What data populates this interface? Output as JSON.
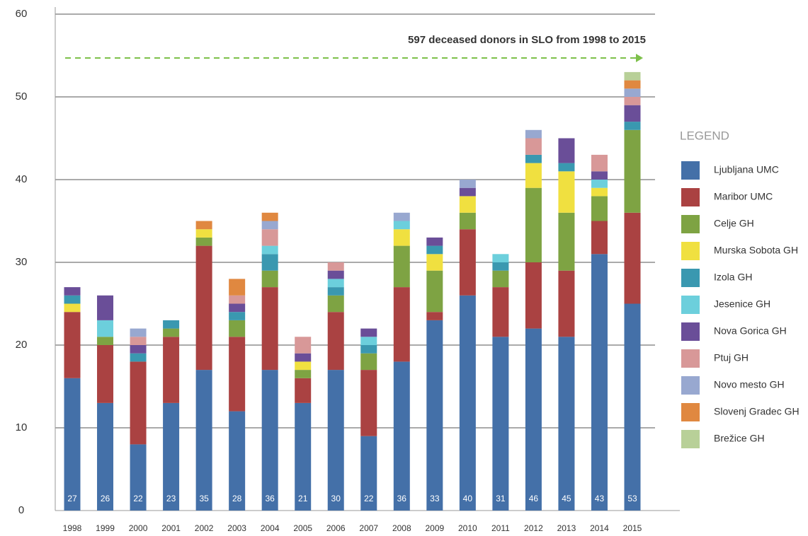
{
  "chart_data": {
    "type": "stacked_bar",
    "annotation": "597 deceased donors in SLO from 1998 to 2015",
    "legend_title": "LEGEND",
    "categories": [
      "1998",
      "1999",
      "2000",
      "2001",
      "2002",
      "2003",
      "2004",
      "2005",
      "2006",
      "2007",
      "2008",
      "2009",
      "2010",
      "2011",
      "2012",
      "2013",
      "2014",
      "2015"
    ],
    "totals": [
      27,
      26,
      22,
      23,
      35,
      28,
      36,
      21,
      30,
      22,
      36,
      33,
      40,
      31,
      46,
      45,
      43,
      53
    ],
    "series": [
      {
        "name": "Ljubljana UMC",
        "color": "#4470a8",
        "values": [
          16,
          13,
          8,
          13,
          17,
          12,
          17,
          13,
          17,
          9,
          18,
          23,
          26,
          21,
          22,
          21,
          31,
          25
        ]
      },
      {
        "name": "Maribor UMC",
        "color": "#aa4242",
        "values": [
          8,
          7,
          10,
          8,
          15,
          9,
          10,
          3,
          7,
          8,
          9,
          1,
          8,
          6,
          8,
          8,
          4,
          11
        ]
      },
      {
        "name": "Celje GH",
        "color": "#7ea343",
        "values": [
          0,
          1,
          0,
          1,
          1,
          2,
          2,
          1,
          2,
          2,
          5,
          5,
          2,
          2,
          9,
          7,
          3,
          10
        ]
      },
      {
        "name": "Murska Sobota GH",
        "color": "#f0e040",
        "values": [
          1,
          0,
          0,
          0,
          1,
          0,
          0,
          1,
          0,
          0,
          2,
          2,
          2,
          0,
          3,
          5,
          1,
          0
        ]
      },
      {
        "name": "Izola GH",
        "color": "#3a98b0",
        "values": [
          1,
          0,
          1,
          1,
          0,
          1,
          2,
          0,
          1,
          1,
          0,
          1,
          0,
          1,
          1,
          1,
          0,
          1
        ]
      },
      {
        "name": "Jesenice GH",
        "color": "#6ccfdc",
        "values": [
          0,
          2,
          0,
          0,
          0,
          0,
          1,
          0,
          1,
          1,
          1,
          0,
          0,
          1,
          0,
          0,
          1,
          0
        ]
      },
      {
        "name": "Nova Gorica GH",
        "color": "#6a4e98",
        "values": [
          1,
          3,
          1,
          0,
          0,
          1,
          0,
          1,
          1,
          1,
          0,
          1,
          1,
          0,
          0,
          3,
          1,
          2
        ]
      },
      {
        "name": "Ptuj GH",
        "color": "#d89898",
        "values": [
          0,
          0,
          1,
          0,
          0,
          1,
          2,
          2,
          1,
          0,
          0,
          0,
          0,
          0,
          2,
          0,
          2,
          1
        ]
      },
      {
        "name": "Novo mesto GH",
        "color": "#98a8d0",
        "values": [
          0,
          0,
          1,
          0,
          0,
          0,
          1,
          0,
          0,
          0,
          1,
          0,
          1,
          0,
          1,
          0,
          0,
          1
        ]
      },
      {
        "name": "Slovenj Gradec GH",
        "color": "#e08840",
        "values": [
          0,
          0,
          0,
          0,
          1,
          2,
          1,
          0,
          0,
          0,
          0,
          0,
          0,
          0,
          0,
          0,
          0,
          1
        ]
      },
      {
        "name": "Brežice GH",
        "color": "#b8d098",
        "values": [
          0,
          0,
          0,
          0,
          0,
          0,
          0,
          0,
          0,
          0,
          0,
          0,
          0,
          0,
          0,
          0,
          0,
          1
        ]
      }
    ],
    "ylim": [
      0,
      60
    ],
    "yticks": [
      0,
      10,
      20,
      30,
      40,
      50,
      60
    ],
    "grid": true
  }
}
